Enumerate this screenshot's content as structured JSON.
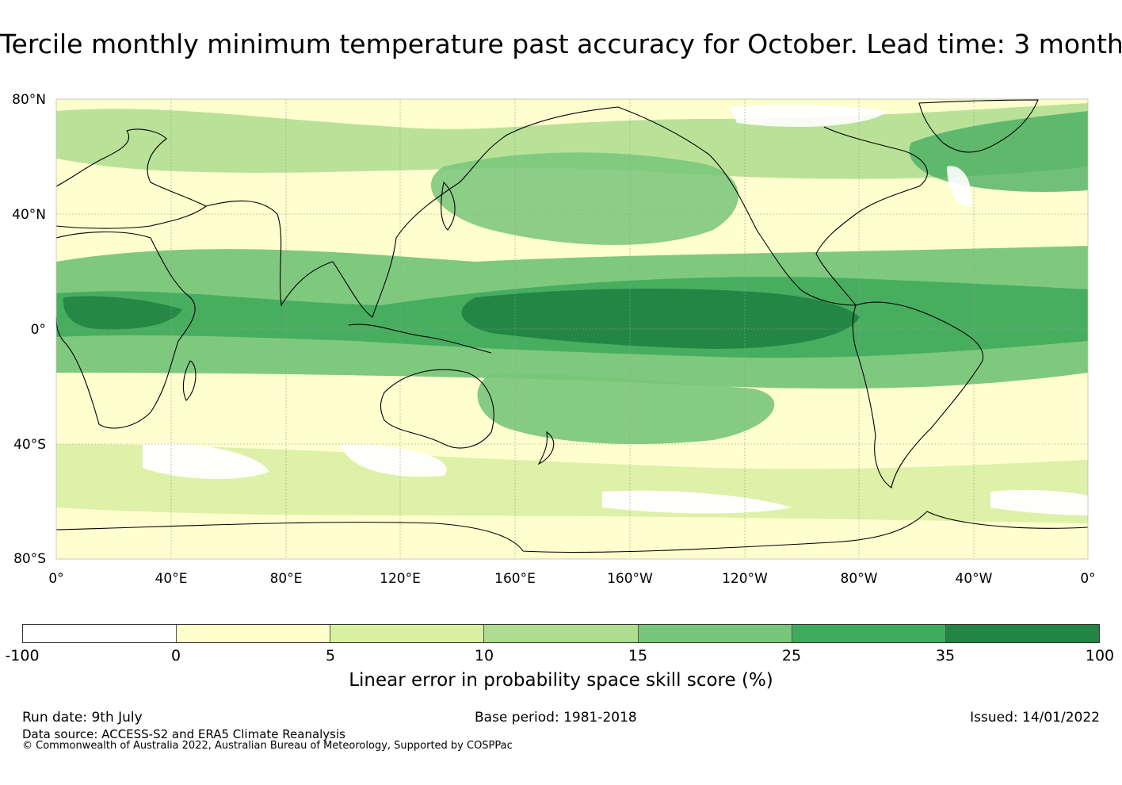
{
  "title": "Tercile monthly minimum temperature past accuracy for October. Lead time: 3 months",
  "map": {
    "lat_labels": [
      "80°N",
      "40°N",
      "0°",
      "40°S",
      "80°S"
    ],
    "lon_labels": [
      "0°",
      "40°E",
      "80°E",
      "120°E",
      "160°E",
      "160°W",
      "120°W",
      "80°W",
      "40°W",
      "0°"
    ],
    "ocean_color": "#fffecf",
    "land_outline_color": "#000000"
  },
  "colorbar": {
    "label": "Linear error in probability space skill score (%)",
    "ticks": [
      "-100",
      "0",
      "5",
      "10",
      "15",
      "25",
      "35",
      "100"
    ],
    "colors": [
      "#ffffff",
      "#ffffcc",
      "#d9f0a3",
      "#addd8e",
      "#78c679",
      "#41ab5d",
      "#238443"
    ]
  },
  "footer": {
    "run_date": "Run date: 9th July",
    "base_period": "Base period: 1981-2018",
    "issued": "Issued: 14/01/2022",
    "data_source": "Data source: ACCESS-S2 and ERA5 Climate Reanalysis",
    "copyright": "© Commonwealth of Australia 2022, Australian Bureau of Meteorology, Supported by COSPPac"
  }
}
